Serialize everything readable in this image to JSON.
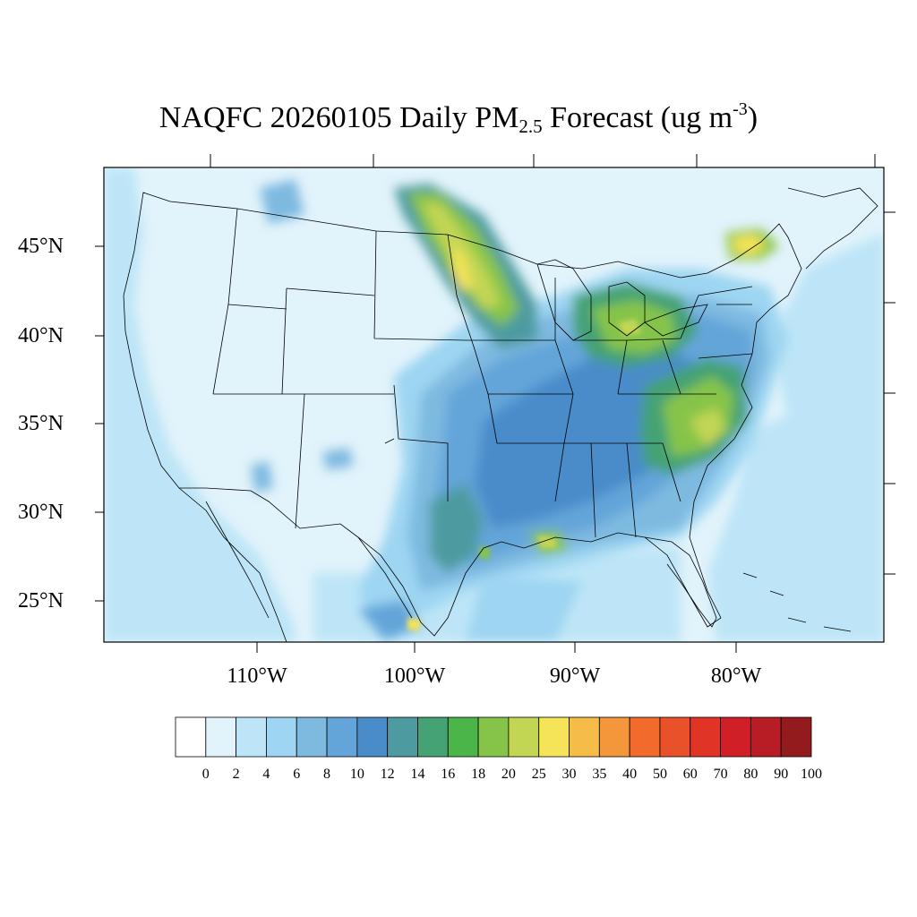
{
  "title": {
    "prefix": "NAQFC 20260105 Daily PM",
    "subscript": "2.5",
    "middle": " Forecast (ug m",
    "superscript": "-3",
    "suffix": ")"
  },
  "latitude_labels": [
    "45°N",
    "40°N",
    "35°N",
    "30°N",
    "25°N"
  ],
  "longitude_labels": [
    "110°W",
    "100°W",
    "90°W",
    "80°W"
  ],
  "colorbar": {
    "labels": [
      "0",
      "2",
      "4",
      "6",
      "8",
      "10",
      "12",
      "14",
      "16",
      "18",
      "20",
      "25",
      "30",
      "35",
      "40",
      "50",
      "60",
      "70",
      "80",
      "90",
      "100"
    ],
    "colors": [
      "#ffffff",
      "#e1f3fb",
      "#bde5f7",
      "#9dd5f2",
      "#7eb9e0",
      "#64a5d9",
      "#4a8cc9",
      "#4d9ba0",
      "#44a275",
      "#4bb549",
      "#86c449",
      "#c3d654",
      "#f6e458",
      "#f6bc48",
      "#f4963a",
      "#f26a2c",
      "#e9512b",
      "#df3426",
      "#d01f27",
      "#b81c24",
      "#931a1d"
    ]
  },
  "map": {
    "description_colors": {
      "background": "#e1f3fb",
      "ocean": "#bde5f7",
      "border": "#000000"
    }
  }
}
